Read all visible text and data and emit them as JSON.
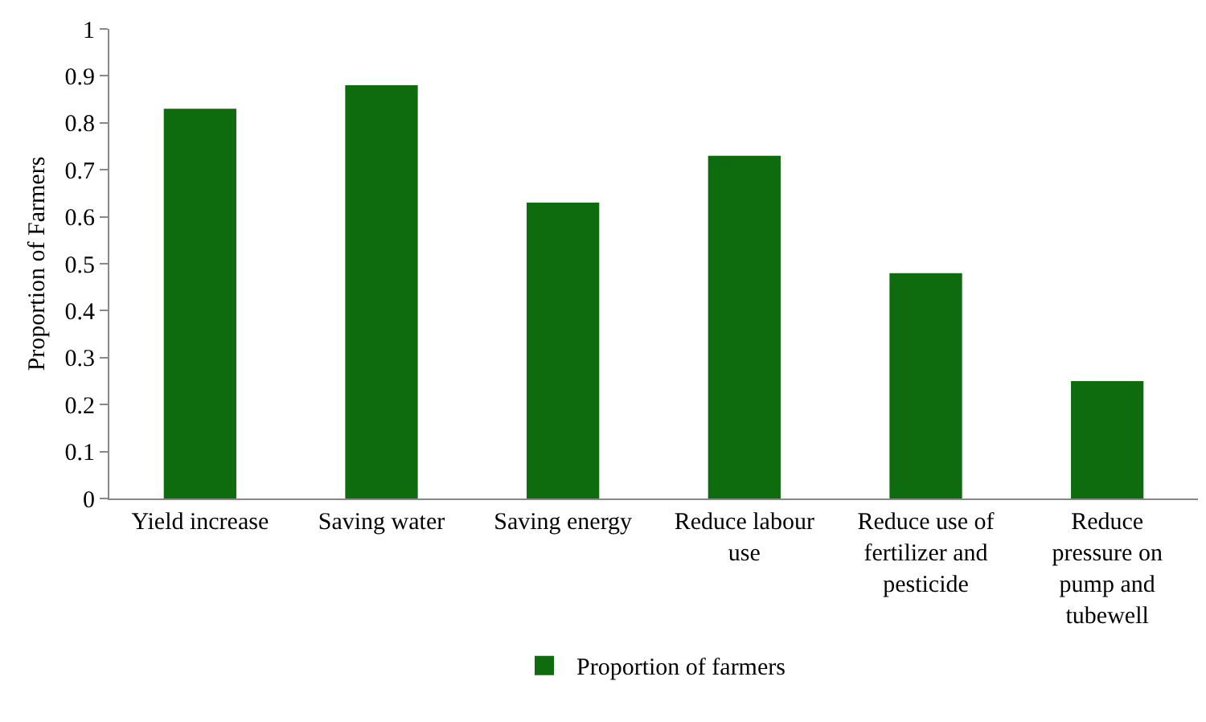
{
  "chart_data": {
    "type": "bar",
    "ylabel": "Proportion of Farmers",
    "categories": [
      "Yield increase",
      "Saving water",
      "Saving energy",
      "Reduce labour use",
      "Reduce use of fertilizer and pesticide",
      "Reduce pressure on pump and tubewell"
    ],
    "series": [
      {
        "name": "Proportion of farmers",
        "color": "#0e6b0e",
        "values": [
          0.83,
          0.88,
          0.63,
          0.73,
          0.48,
          0.25
        ]
      }
    ],
    "ylim": [
      0,
      1
    ],
    "yticks": [
      0,
      0.1,
      0.2,
      0.3,
      0.4,
      0.5,
      0.6,
      0.7,
      0.8,
      0.9,
      1
    ],
    "grid": false,
    "legend": "bottom"
  }
}
